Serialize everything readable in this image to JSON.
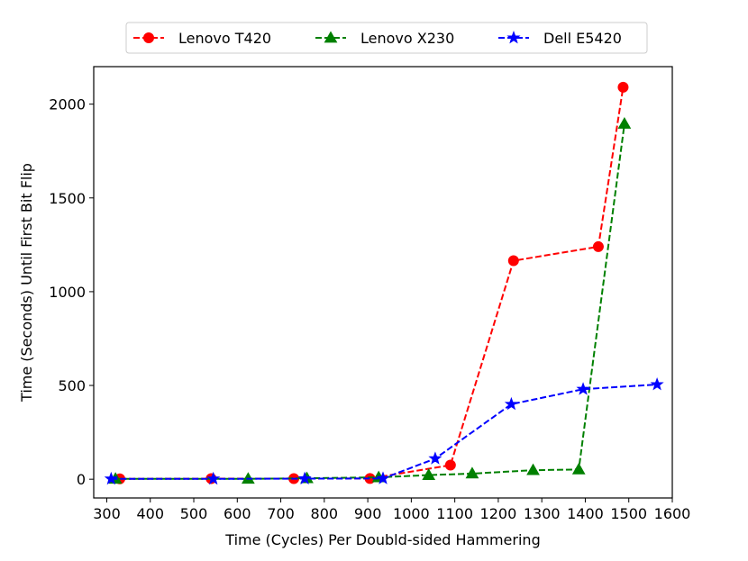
{
  "chart_data": {
    "type": "line",
    "xlabel": "Time (Cycles) Per Doubld-sided Hammering",
    "ylabel": "Time (Seconds) Until First Bit Flip",
    "xlim": [
      270,
      1600
    ],
    "ylim": [
      -100,
      2200
    ],
    "xticks": [
      300,
      400,
      500,
      600,
      700,
      800,
      900,
      1000,
      1100,
      1200,
      1300,
      1400,
      1500,
      1600
    ],
    "yticks": [
      0,
      500,
      1000,
      1500,
      2000
    ],
    "grid": false,
    "legend_position": "top-center",
    "series": [
      {
        "name": "Lenovo T420",
        "color": "#ff0000",
        "marker": "circle",
        "x": [
          330,
          540,
          730,
          905,
          1090,
          1235,
          1430,
          1487
        ],
        "y": [
          2,
          3,
          3,
          4,
          75,
          1165,
          1240,
          2090
        ]
      },
      {
        "name": "Lenovo X230",
        "color": "#008000",
        "marker": "triangle",
        "x": [
          320,
          625,
          760,
          925,
          1040,
          1140,
          1280,
          1385,
          1490
        ],
        "y": [
          2,
          2,
          5,
          10,
          22,
          30,
          48,
          52,
          1895
        ]
      },
      {
        "name": "Dell E5420",
        "color": "#0000ff",
        "marker": "star",
        "x": [
          310,
          545,
          755,
          935,
          1055,
          1230,
          1395,
          1565
        ],
        "y": [
          2,
          2,
          3,
          4,
          110,
          400,
          480,
          505
        ]
      }
    ]
  }
}
